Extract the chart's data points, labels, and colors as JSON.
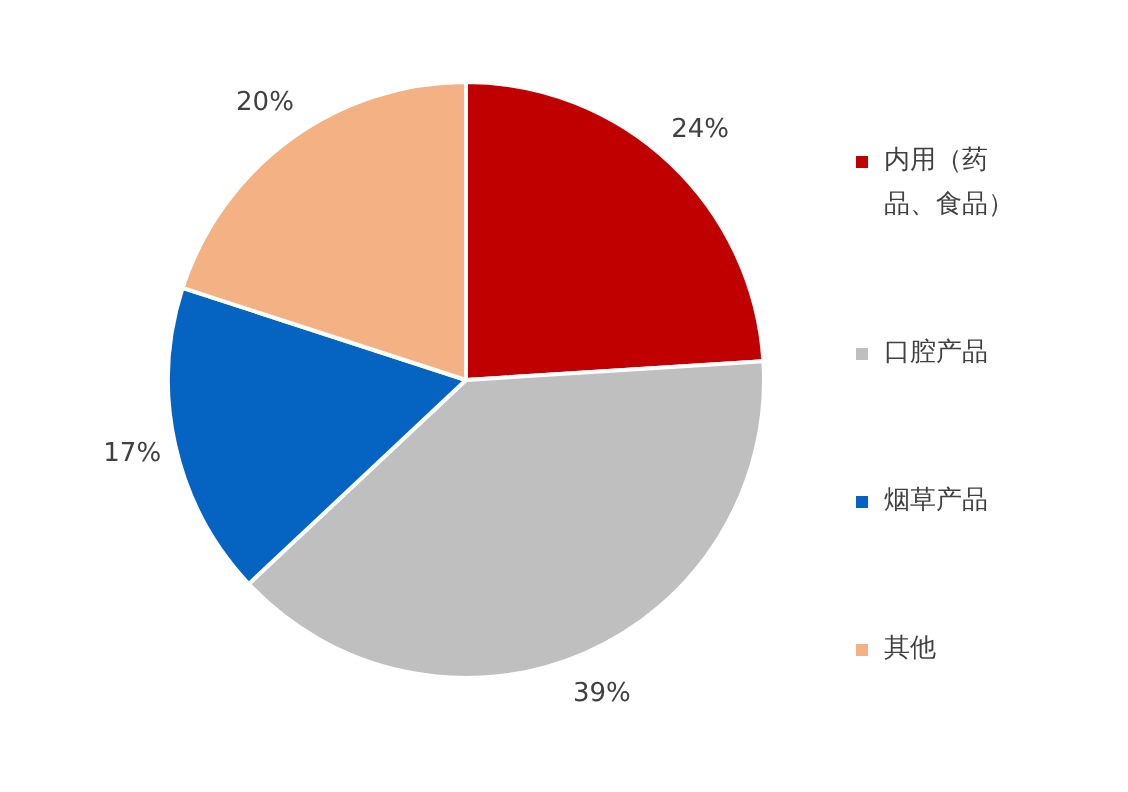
{
  "chart_data": {
    "type": "pie",
    "categories": [
      "内用（药品、食品）",
      "口腔产品",
      "烟草产品",
      "其他"
    ],
    "values": [
      24,
      39,
      17,
      20
    ],
    "colors": [
      "#c00000",
      "#bfbfbf",
      "#0563c1",
      "#f4b183"
    ],
    "value_labels": [
      "24%",
      "39%",
      "17%",
      "20%"
    ],
    "legend": "right"
  }
}
